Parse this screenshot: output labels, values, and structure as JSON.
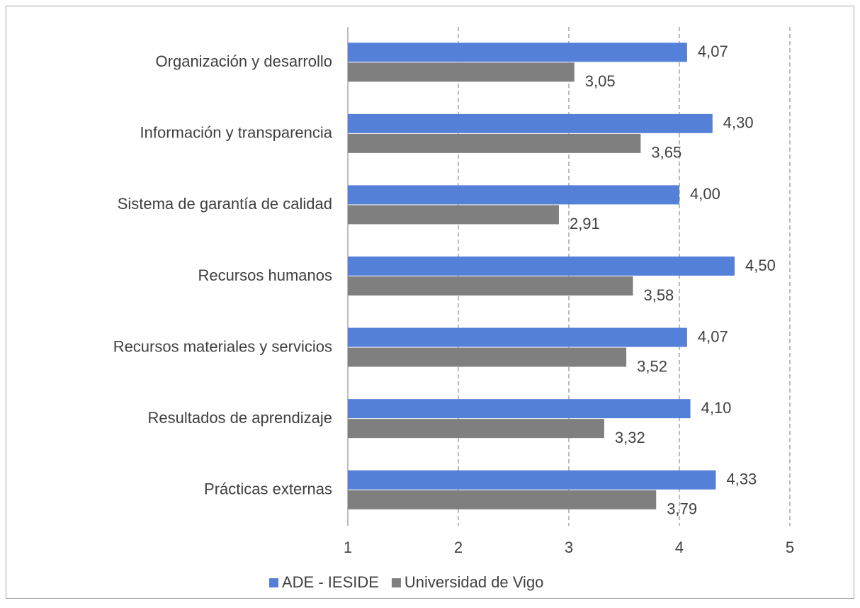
{
  "chart_data": {
    "type": "bar",
    "orientation": "horizontal",
    "categories": [
      "Organización y desarrollo",
      "Información y transparencia",
      "Sistema de garantía de calidad",
      "Recursos humanos",
      "Recursos materiales y servicios",
      "Resultados de aprendizaje",
      "Prácticas externas"
    ],
    "series": [
      {
        "name": "ADE - IESIDE",
        "color": "#5580d8",
        "values": [
          4.07,
          4.3,
          4.0,
          4.5,
          4.07,
          4.1,
          4.33
        ],
        "value_labels": [
          "4,07",
          "4,30",
          "4,00",
          "4,50",
          "4,07",
          "4,10",
          "4,33"
        ]
      },
      {
        "name": "Universidad de Vigo",
        "color": "#7f7f7f",
        "values": [
          3.05,
          3.65,
          2.91,
          3.58,
          3.52,
          3.32,
          3.79
        ],
        "value_labels": [
          "3,05",
          "3,65",
          "2,91",
          "3,58",
          "3,52",
          "3,32",
          "3,79"
        ]
      }
    ],
    "xlim": [
      1,
      5
    ],
    "xticks": [
      1,
      2,
      3,
      4,
      5
    ],
    "grid": true,
    "legend": "bottom"
  }
}
